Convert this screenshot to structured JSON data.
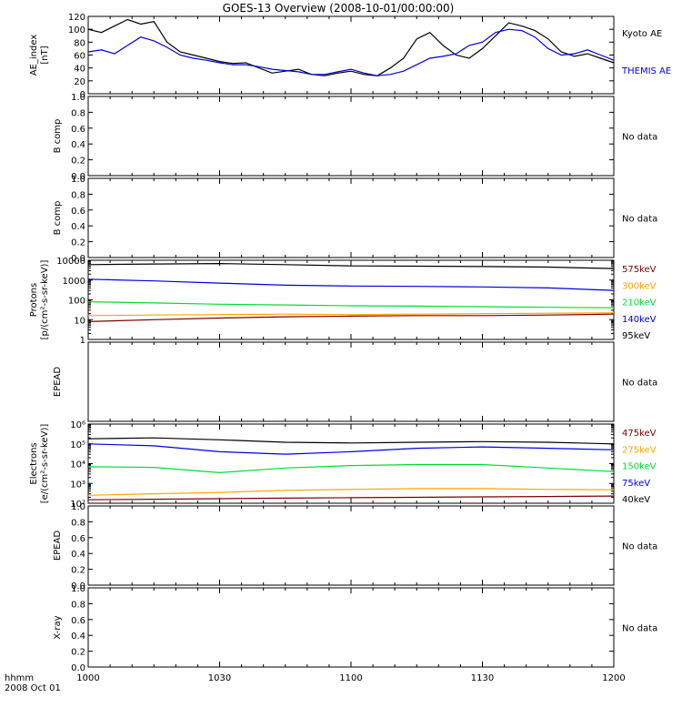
{
  "title": "GOES-13 Overview (2008-10-01/00:00:00)",
  "time_axis": {
    "label_line1": "hhmm",
    "label_line2": "2008 Oct 01",
    "ticks": [
      "1000",
      "1030",
      "1100",
      "1130",
      "1200"
    ],
    "start_minutes": 600,
    "end_minutes": 720
  },
  "colors": {
    "black": "#000000",
    "blue": "#0000dd",
    "green": "#00dd33",
    "orange": "#ffa500",
    "darkred": "#7a0000"
  },
  "chart_data": [
    {
      "type": "line",
      "panel": "ae_index",
      "ylabel_line1": "AE_index",
      "ylabel_line2": "[nT]",
      "ylim": [
        0,
        120
      ],
      "yticks": [
        "0",
        "20",
        "40",
        "60",
        "80",
        "100",
        "120"
      ],
      "x": [
        600,
        603,
        606,
        609,
        612,
        615,
        618,
        621,
        624,
        627,
        630,
        633,
        636,
        639,
        642,
        645,
        648,
        651,
        654,
        657,
        660,
        663,
        666,
        669,
        672,
        675,
        678,
        681,
        684,
        687,
        690,
        693,
        696,
        699,
        702,
        705,
        708,
        711,
        714,
        717,
        720
      ],
      "series": [
        {
          "name": "Kyoto AE",
          "color": "#000000",
          "values": [
            100,
            95,
            105,
            115,
            108,
            112,
            80,
            65,
            60,
            55,
            50,
            47,
            48,
            40,
            32,
            35,
            38,
            30,
            28,
            32,
            35,
            30,
            28,
            40,
            55,
            85,
            95,
            75,
            60,
            55,
            70,
            90,
            110,
            105,
            98,
            85,
            65,
            58,
            62,
            55,
            48
          ]
        },
        {
          "name": "THEMIS AE",
          "color": "#0000dd",
          "values": [
            65,
            68,
            62,
            75,
            88,
            82,
            72,
            60,
            55,
            52,
            48,
            45,
            45,
            42,
            38,
            36,
            34,
            30,
            30,
            34,
            38,
            32,
            28,
            30,
            35,
            45,
            55,
            58,
            62,
            75,
            80,
            95,
            100,
            98,
            88,
            70,
            60,
            62,
            68,
            60,
            52
          ]
        }
      ]
    },
    {
      "type": "line",
      "panel": "b_comp_1",
      "ylabel": "B comp",
      "ylim": [
        0,
        1
      ],
      "yticks": [
        "0.0",
        "0.2",
        "0.4",
        "0.6",
        "0.8",
        "1.0"
      ],
      "status": "No data",
      "series": []
    },
    {
      "type": "line",
      "panel": "b_comp_2",
      "ylabel": "B comp",
      "ylim": [
        0,
        1
      ],
      "yticks": [
        "0.0",
        "0.2",
        "0.4",
        "0.6",
        "0.8",
        "1.0"
      ],
      "status": "No data",
      "series": []
    },
    {
      "type": "line",
      "panel": "protons",
      "ylabel_line1": "Protons",
      "ylabel_line2": "[p/(cm²-s-sr-keV)]",
      "yscale": "log",
      "ylim": [
        1,
        10000
      ],
      "yticks": [
        "1",
        "10",
        "100",
        "1000",
        "10000"
      ],
      "x": [
        600,
        615,
        630,
        645,
        660,
        675,
        690,
        705,
        720
      ],
      "series": [
        {
          "name": "575keV",
          "color": "#7a0000",
          "values": [
            8,
            10,
            12,
            14,
            15,
            16,
            16,
            17,
            19
          ]
        },
        {
          "name": "300keV",
          "color": "#ffa500",
          "values": [
            16,
            17,
            18,
            19,
            18,
            19,
            20,
            21,
            22
          ]
        },
        {
          "name": "210keV",
          "color": "#00dd33",
          "values": [
            80,
            70,
            60,
            55,
            50,
            48,
            45,
            42,
            40
          ]
        },
        {
          "name": "140keV",
          "color": "#0000dd",
          "values": [
            1100,
            900,
            700,
            550,
            500,
            480,
            450,
            400,
            300
          ]
        },
        {
          "name": "95keV",
          "color": "#000000",
          "values": [
            6000,
            6500,
            6800,
            6000,
            5200,
            5000,
            4800,
            4500,
            3800
          ]
        }
      ]
    },
    {
      "type": "line",
      "panel": "epead_1",
      "ylabel": "EPEAD",
      "status": "No data",
      "series": []
    },
    {
      "type": "line",
      "panel": "electrons",
      "ylabel_line1": "Electrons",
      "ylabel_line2": "[e/(cm²-s-sr-keV)]",
      "yscale": "log",
      "ylim": [
        100,
        1000000
      ],
      "yticks": [
        "10²",
        "10³",
        "10⁴",
        "10⁵",
        "10⁶"
      ],
      "x": [
        600,
        615,
        630,
        645,
        660,
        675,
        690,
        705,
        720
      ],
      "series": [
        {
          "name": "475keV",
          "color": "#7a0000",
          "values": [
            150,
            160,
            170,
            180,
            190,
            200,
            210,
            220,
            230
          ]
        },
        {
          "name": "275keV",
          "color": "#ffa500",
          "values": [
            250,
            300,
            350,
            450,
            500,
            550,
            550,
            500,
            480
          ]
        },
        {
          "name": "150keV",
          "color": "#00dd33",
          "values": [
            7000,
            6500,
            3500,
            6000,
            8000,
            9000,
            9000,
            6000,
            4000
          ]
        },
        {
          "name": "75keV",
          "color": "#0000dd",
          "values": [
            100000,
            80000,
            40000,
            30000,
            40000,
            60000,
            70000,
            60000,
            50000
          ]
        },
        {
          "name": "40keV",
          "color": "#000000",
          "values": [
            180000,
            200000,
            160000,
            120000,
            110000,
            120000,
            130000,
            120000,
            100000
          ]
        }
      ]
    },
    {
      "type": "line",
      "panel": "epead_2",
      "ylabel": "EPEAD",
      "ylim": [
        0,
        1
      ],
      "yticks": [
        "0.0",
        "0.2",
        "0.4",
        "0.6",
        "0.8",
        "1.0"
      ],
      "status": "No data",
      "series": []
    },
    {
      "type": "line",
      "panel": "xray",
      "ylabel": "X-ray",
      "ylim": [
        0,
        1
      ],
      "yticks": [
        "0.0",
        "0.2",
        "0.4",
        "0.6",
        "0.8",
        "1.0"
      ],
      "status": "No data",
      "series": []
    }
  ]
}
